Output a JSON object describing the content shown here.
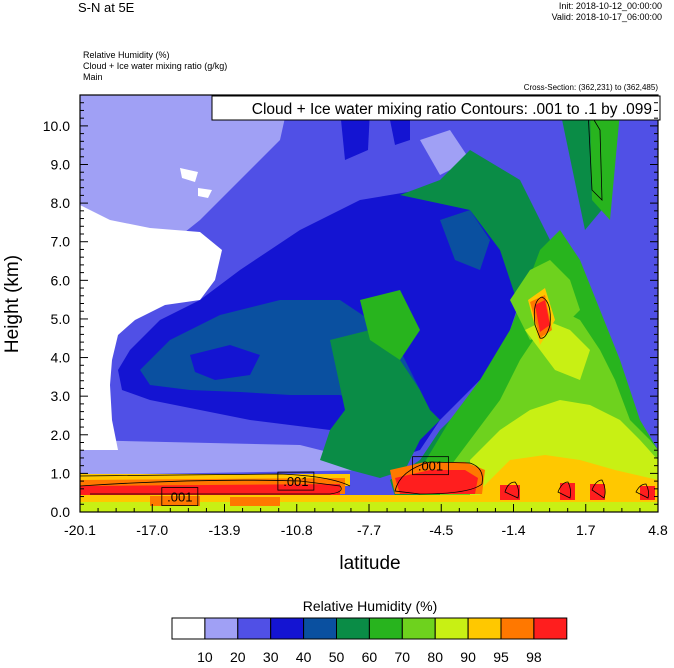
{
  "header": {
    "title": "S-N at 5E",
    "init": "Init: 2018-10-12_00:00:00",
    "valid": "Valid: 2018-10-17_06:00:00",
    "field1": "Relative Humidity   (%)",
    "field2": "Cloud + Ice water mixing ratio   (g/kg)",
    "field3": "Main",
    "cross_section": "Cross-Section: (362,231) to (362,485)"
  },
  "chart_data": {
    "type": "heatmap",
    "title": "S-N at 5E",
    "xlabel": "latitude",
    "ylabel": "Height (km)",
    "x_ticks": [
      "-20.1",
      "-17.0",
      "-13.9",
      "-10.8",
      "-7.7",
      "-4.5",
      "-1.4",
      "1.7",
      "4.8"
    ],
    "y_ticks": [
      "0.0",
      "1.0",
      "2.0",
      "3.0",
      "4.0",
      "5.0",
      "6.0",
      "7.0",
      "8.0",
      "9.0",
      "10.0"
    ],
    "xlim": [
      -20.1,
      4.8
    ],
    "ylim": [
      0,
      10.8
    ],
    "contour_title": "Cloud + Ice water mixing ratio Contours: .001 to .1 by .099",
    "contour_labels": [
      {
        "text": ".001",
        "x": -15.8,
        "y": 0.4
      },
      {
        "text": ".001",
        "x": -10.8,
        "y": 0.8
      },
      {
        "text": ".001",
        "x": -5.0,
        "y": 1.2
      }
    ],
    "colorbar": {
      "title": "Relative Humidity  (%)",
      "levels": [
        "10",
        "20",
        "30",
        "40",
        "50",
        "60",
        "70",
        "80",
        "90",
        "95",
        "98"
      ],
      "colors": [
        "#ffffff",
        "#a0a0f5",
        "#5050e6",
        "#1414d2",
        "#0a50a0",
        "#0a8c46",
        "#28b41e",
        "#6ed21e",
        "#c8f014",
        "#ffc800",
        "#ff7800",
        "#ff1e1e"
      ]
    },
    "colors": {
      "white": "#ffffff",
      "lav": "#a0a0f5",
      "mblue": "#5050e6",
      "blue": "#1414d2",
      "dblue": "#0a50a0",
      "dgreen": "#0a8c46",
      "green": "#28b41e",
      "lgreen": "#6ed21e",
      "ygreen": "#c8f014",
      "yellow": "#ffc800",
      "orange": "#ff7800",
      "red": "#ff1e1e"
    }
  }
}
